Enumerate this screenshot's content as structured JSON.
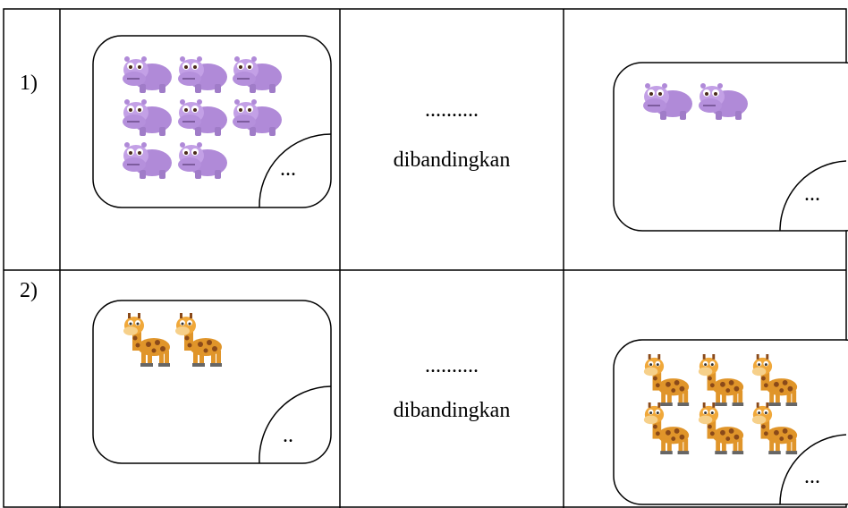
{
  "table": {
    "rows": [
      {
        "number": "1)",
        "left_label": "...",
        "dots": "..........",
        "compare": "dibandingkan",
        "right_label": "..."
      },
      {
        "number": "2)",
        "left_label": "..",
        "dots": "..........",
        "compare": "dibandingkan",
        "right_label": "..."
      }
    ]
  }
}
